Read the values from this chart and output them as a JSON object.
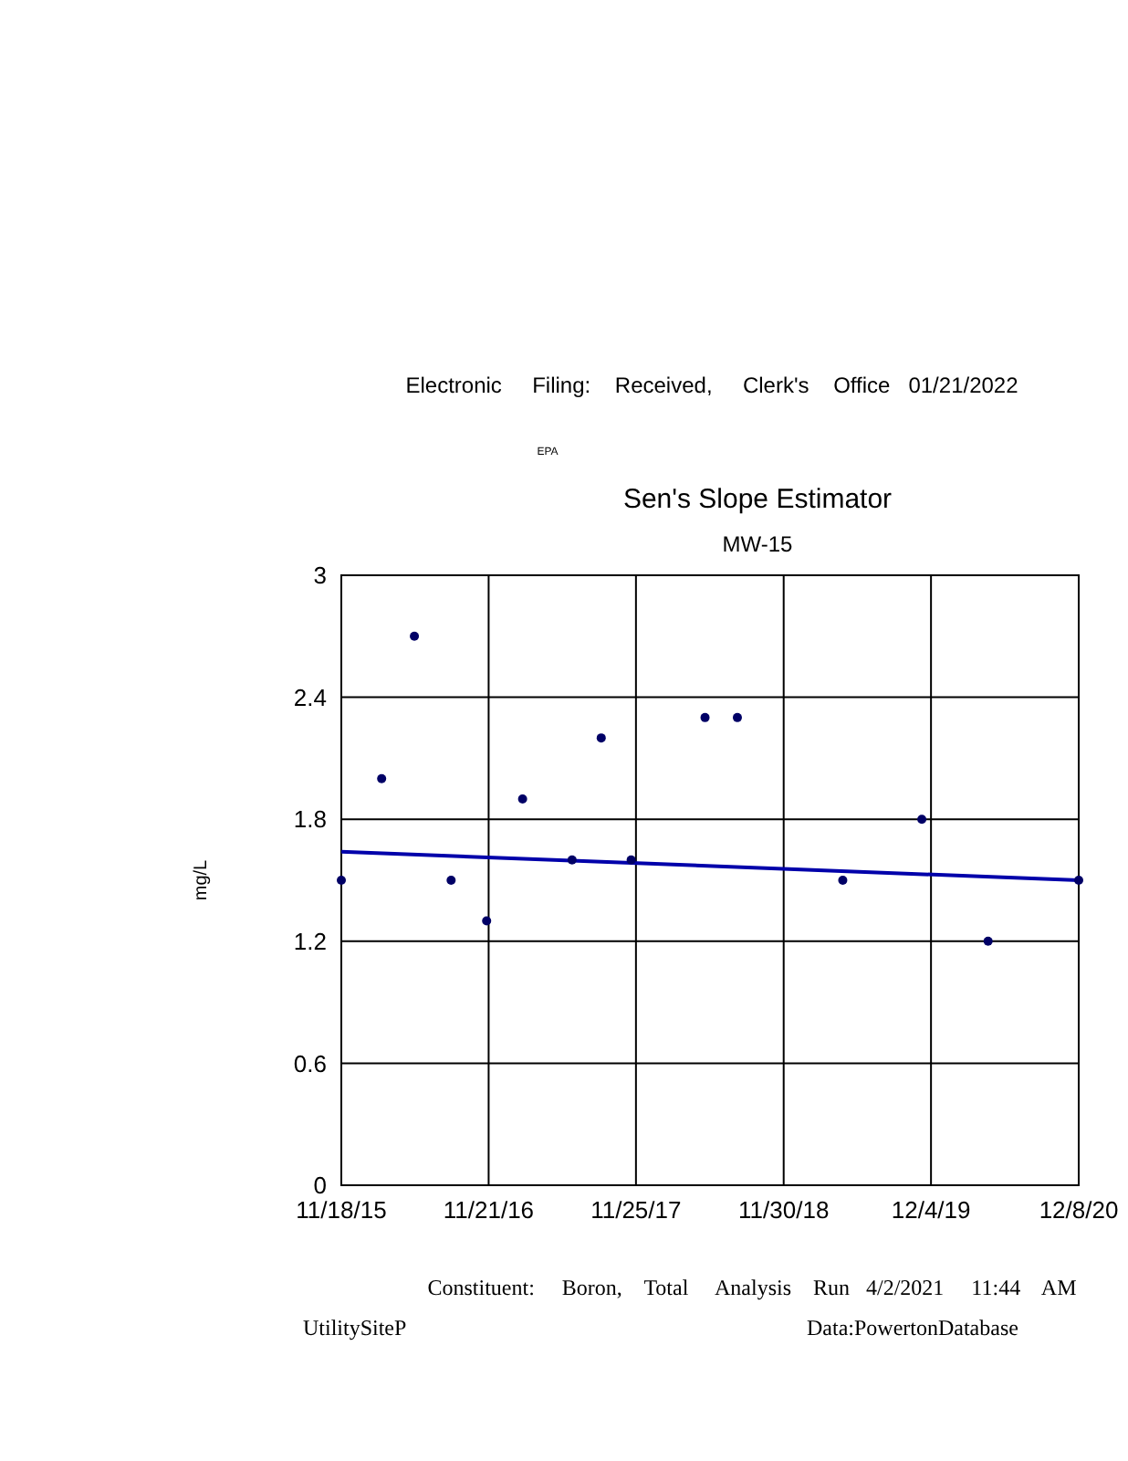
{
  "chart_data": {
    "type": "scatter",
    "title": "Sen's Slope Estimator",
    "subtitle": "MW-15",
    "ylabel": "mg/L",
    "annotations": [
      "Electronic     Filing:    Received,     Clerk's    Office   01/21/2022",
      "EPA",
      "Constituent:     Boron,    Total     Analysis    Run   4/2/2021     11:44    AM",
      "UtilitySiteP",
      "Data:PowertonDatabase"
    ],
    "series": [
      {
        "color": "#000066",
        "x": [
          "2015-11-18",
          "2016-02-27",
          "2016-05-19",
          "2016-08-19",
          "2016-11-16",
          "2017-02-14",
          "2017-06-18",
          "2017-08-30",
          "2017-11-13",
          "2018-05-17",
          "2018-08-06",
          "2019-04-27",
          "2019-11-11",
          "2020-04-25",
          "2020-12-08"
        ],
        "values": [
          1.5,
          2.0,
          2.7,
          1.5,
          1.3,
          1.9,
          1.6,
          2.2,
          1.6,
          2.3,
          2.3,
          1.5,
          1.8,
          1.2,
          1.5
        ]
      },
      {
        "type": "line",
        "marker": "none",
        "color": "#0000aa",
        "x": [
          "2015-11-18",
          "2020-12-08"
        ],
        "values": [
          1.64,
          1.5
        ]
      }
    ],
    "xlim": [
      "2015-11-18",
      "2020-12-08"
    ],
    "xticks": [
      {
        "value": "2015-11-18",
        "label": "11/18/15"
      },
      {
        "value": "2016-11-21",
        "label": "11/21/16"
      },
      {
        "value": "2017-11-25",
        "label": "11/25/17"
      },
      {
        "value": "2018-11-30",
        "label": "11/30/18"
      },
      {
        "value": "2019-12-04",
        "label": "12/4/19"
      },
      {
        "value": "2020-12-08",
        "label": "12/8/20"
      }
    ],
    "ylim": [
      0,
      3
    ],
    "yticks": [
      0,
      0.6,
      1.2,
      1.8,
      2.4,
      3
    ],
    "grid": true,
    "marker": "circle"
  }
}
